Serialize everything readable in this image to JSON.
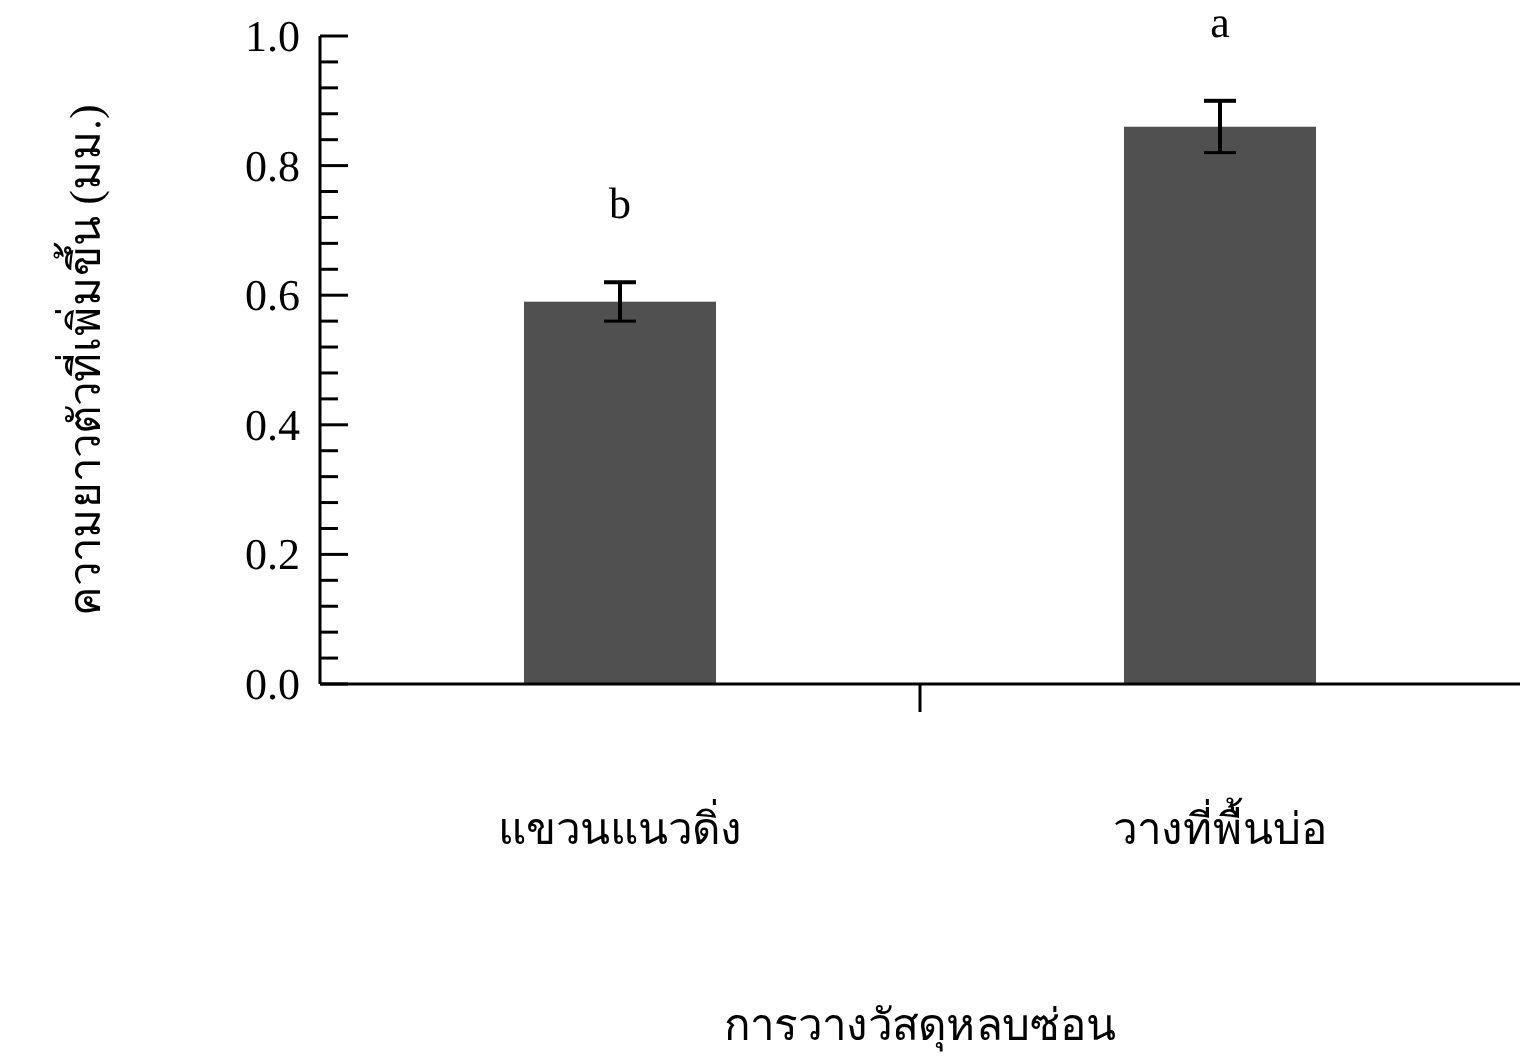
{
  "chart_data": {
    "type": "bar",
    "xlabel": "การวางวัสดุหลบซ่อน",
    "ylabel": "ความยาวตัวที่เพิ่มขึ้น (มม.)",
    "categories": [
      "แขวนแนวดิ่ง",
      "วางที่พื้นบ่อ"
    ],
    "values": [
      0.59,
      0.86
    ],
    "errors": [
      0.03,
      0.04
    ],
    "color": "#505050",
    "ylim": [
      0,
      1
    ],
    "yticks": [
      {
        "value": 0,
        "label": "0.0"
      },
      {
        "value": 0.04,
        "label": null
      },
      {
        "value": 0.08,
        "label": null
      },
      {
        "value": 0.12,
        "label": null
      },
      {
        "value": 0.16,
        "label": null
      },
      0.2,
      {
        "value": 0.24,
        "label": null
      },
      {
        "value": 0.28,
        "label": null
      },
      {
        "value": 0.32,
        "label": null
      },
      {
        "value": 0.36,
        "label": null
      },
      0.4,
      {
        "value": 0.44,
        "label": null
      },
      {
        "value": 0.48,
        "label": null
      },
      {
        "value": 0.52,
        "label": null
      },
      {
        "value": 0.56,
        "label": null
      },
      0.6,
      {
        "value": 0.64,
        "label": null
      },
      {
        "value": 0.68,
        "label": null
      },
      {
        "value": 0.72,
        "label": null
      },
      {
        "value": 0.76,
        "label": null
      },
      0.8,
      {
        "value": 0.84,
        "label": null
      },
      {
        "value": 0.88,
        "label": null
      },
      {
        "value": 0.92,
        "label": null
      },
      {
        "value": 0.96,
        "label": null
      },
      {
        "value": 1,
        "label": "1.0"
      }
    ],
    "annotations": [
      "b",
      "a"
    ]
  }
}
